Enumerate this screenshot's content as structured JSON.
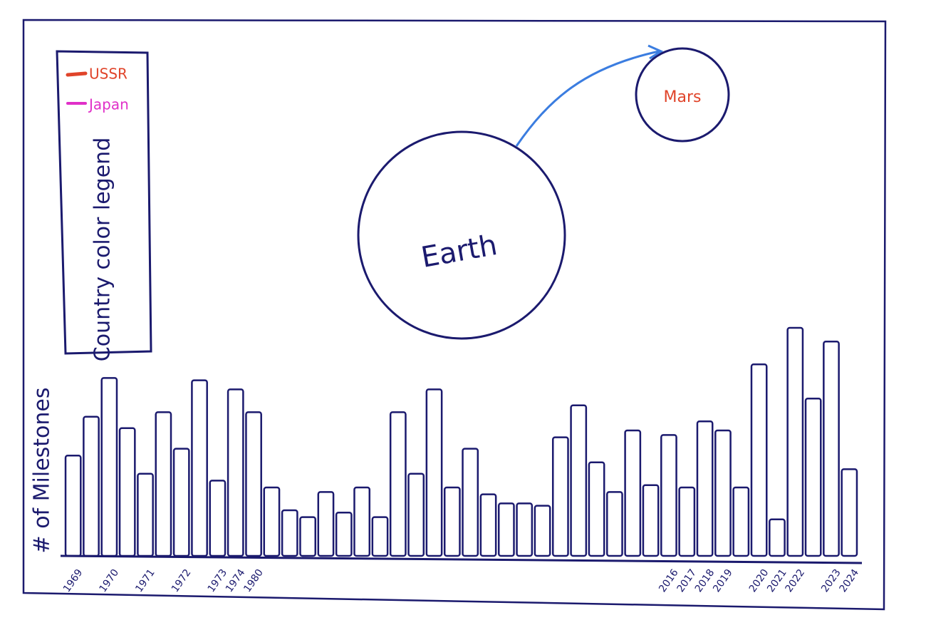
{
  "legend": {
    "title": "Country color legend",
    "items": [
      {
        "label": "USSR",
        "color": "#e0442a"
      },
      {
        "label": "Japan",
        "color": "#e030c8"
      }
    ]
  },
  "planets": [
    {
      "label": "Earth"
    },
    {
      "label": "Mars"
    }
  ],
  "chart_data": {
    "type": "bar",
    "y_label": "# of Milestones",
    "color": "#1b1a6e",
    "categories": [
      "1969",
      null,
      "1970",
      null,
      "1971",
      null,
      "1972",
      null,
      "1973",
      "1974",
      "1980",
      null,
      null,
      null,
      null,
      null,
      null,
      null,
      null,
      null,
      null,
      null,
      null,
      null,
      null,
      null,
      null,
      null,
      null,
      null,
      null,
      null,
      null,
      "2016",
      "2017",
      "2018",
      "2019",
      null,
      "2020",
      "2021",
      "2022",
      null,
      "2023",
      "2024"
    ],
    "values": [
      4.4,
      6.1,
      7.8,
      5.6,
      3.6,
      6.3,
      4.7,
      7.7,
      3.3,
      7.3,
      6.3,
      3.0,
      2.0,
      1.7,
      2.8,
      1.9,
      3.0,
      1.7,
      6.3,
      3.6,
      7.3,
      3.0,
      4.7,
      2.7,
      2.3,
      2.3,
      2.2,
      5.2,
      6.6,
      4.1,
      2.8,
      5.5,
      3.1,
      5.3,
      3.0,
      5.9,
      5.5,
      3.0,
      8.4,
      1.6,
      10,
      6.9,
      9.4,
      3.8
    ],
    "ylim": [
      0,
      10
    ]
  }
}
